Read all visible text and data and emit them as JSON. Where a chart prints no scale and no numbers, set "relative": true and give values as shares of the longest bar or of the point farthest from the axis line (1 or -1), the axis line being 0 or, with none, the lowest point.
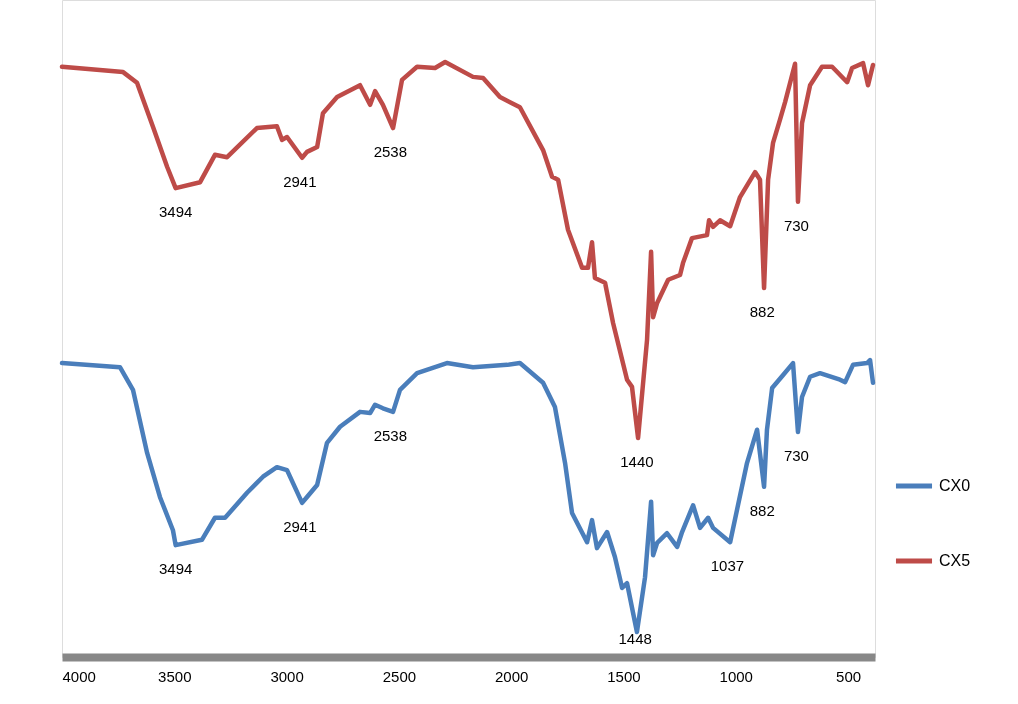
{
  "chart_data": {
    "type": "line",
    "relative": true,
    "xlim": [
      4000,
      380
    ],
    "xticks": [
      4000,
      3500,
      3000,
      2500,
      2000,
      1500,
      1000,
      500
    ],
    "grid": false,
    "legend": "right",
    "line_style": "solid",
    "marker": "none",
    "series": [
      {
        "name": "CX0",
        "color": "#4a7ebb",
        "x": [
          4000,
          3742,
          3684,
          3621,
          3564,
          3506,
          3494,
          3377,
          3319,
          3274,
          3176,
          3105,
          3043,
          2998,
          2931,
          2909,
          2864,
          2820,
          2762,
          2673,
          2628,
          2606,
          2571,
          2526,
          2495,
          2419,
          2286,
          2170,
          2018,
          1961,
          1858,
          1805,
          1760,
          1729,
          1662,
          1640,
          1618,
          1573,
          1538,
          1506,
          1484,
          1440,
          1404,
          1377,
          1368,
          1350,
          1306,
          1261,
          1239,
          1190,
          1159,
          1123,
          1101,
          1025,
          950,
          905,
          874,
          861,
          838,
          789,
          745,
          723,
          705,
          669,
          625,
          536,
          513,
          478,
          415,
          402,
          389
        ],
        "values": [
          0.494,
          0.487,
          0.449,
          0.343,
          0.269,
          0.213,
          0.188,
          0.197,
          0.234,
          0.234,
          0.276,
          0.303,
          0.319,
          0.314,
          0.259,
          0.269,
          0.289,
          0.36,
          0.387,
          0.412,
          0.41,
          0.424,
          0.418,
          0.412,
          0.449,
          0.477,
          0.494,
          0.487,
          0.491,
          0.494,
          0.461,
          0.42,
          0.326,
          0.242,
          0.193,
          0.23,
          0.183,
          0.21,
          0.168,
          0.116,
          0.124,
          0.042,
          0.134,
          0.261,
          0.171,
          0.192,
          0.208,
          0.185,
          0.21,
          0.255,
          0.217,
          0.234,
          0.217,
          0.193,
          0.326,
          0.382,
          0.286,
          0.382,
          0.452,
          0.474,
          0.494,
          0.378,
          0.437,
          0.471,
          0.477,
          0.466,
          0.462,
          0.491,
          0.494,
          0.499,
          0.461
        ]
      },
      {
        "name": "CX5",
        "color": "#be4b48",
        "x": [
          4000,
          3728,
          3666,
          3595,
          3532,
          3494,
          3385,
          3319,
          3265,
          3132,
          3043,
          3020,
          2998,
          2931,
          2909,
          2864,
          2838,
          2775,
          2673,
          2628,
          2606,
          2571,
          2526,
          2486,
          2419,
          2339,
          2294,
          2170,
          2125,
          2050,
          1961,
          1858,
          1818,
          1791,
          1747,
          1684,
          1658,
          1640,
          1627,
          1582,
          1546,
          1484,
          1462,
          1435,
          1395,
          1377,
          1368,
          1350,
          1301,
          1248,
          1235,
          1195,
          1128,
          1119,
          1101,
          1070,
          1025,
          981,
          914,
          892,
          874,
          856,
          834,
          803,
          780,
          736,
          723,
          705,
          669,
          616,
          571,
          504,
          482,
          433,
          411,
          389
        ],
        "values": [
          0.992,
          0.983,
          0.965,
          0.891,
          0.824,
          0.788,
          0.798,
          0.844,
          0.84,
          0.889,
          0.892,
          0.869,
          0.874,
          0.839,
          0.849,
          0.857,
          0.914,
          0.941,
          0.961,
          0.928,
          0.951,
          0.928,
          0.889,
          0.97,
          0.992,
          0.99,
          1.0,
          0.975,
          0.973,
          0.941,
          0.924,
          0.852,
          0.807,
          0.802,
          0.718,
          0.654,
          0.654,
          0.697,
          0.637,
          0.629,
          0.561,
          0.466,
          0.454,
          0.368,
          0.533,
          0.681,
          0.571,
          0.595,
          0.634,
          0.642,
          0.662,
          0.704,
          0.709,
          0.734,
          0.723,
          0.734,
          0.724,
          0.773,
          0.815,
          0.802,
          0.62,
          0.802,
          0.864,
          0.903,
          0.933,
          0.997,
          0.765,
          0.897,
          0.961,
          0.992,
          0.992,
          0.966,
          0.99,
          0.998,
          0.961,
          0.995
        ]
      }
    ],
    "annotations": [
      {
        "text": "3494",
        "x": 3494,
        "y": 0.788
      },
      {
        "text": "2941",
        "x": 2941,
        "y": 0.839
      },
      {
        "text": "2538",
        "x": 2538,
        "y": 0.889
      },
      {
        "text": "1440",
        "x": 1440,
        "y": 0.368
      },
      {
        "text": "882",
        "x": 882,
        "y": 0.62
      },
      {
        "text": "730",
        "x": 730,
        "y": 0.765
      },
      {
        "text": "3494",
        "x": 3494,
        "y": 0.188
      },
      {
        "text": "2941",
        "x": 2941,
        "y": 0.259
      },
      {
        "text": "2538",
        "x": 2538,
        "y": 0.412
      },
      {
        "text": "1448",
        "x": 1448,
        "y": 0.042
      },
      {
        "text": "1037",
        "x": 1037,
        "y": 0.193
      },
      {
        "text": "882",
        "x": 882,
        "y": 0.286
      },
      {
        "text": "730",
        "x": 730,
        "y": 0.378
      }
    ]
  }
}
